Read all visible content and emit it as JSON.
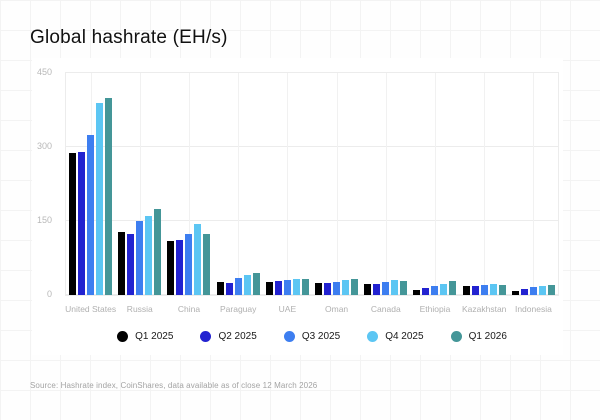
{
  "title": "Global hashrate (EH/s)",
  "source": "Source: Hashrate index, CoinShares, data available as of close 12 March 2026",
  "chart_data": {
    "type": "bar",
    "title": "Global hashrate (EH/s)",
    "categories": [
      "United States",
      "Russia",
      "China",
      "Paraguay",
      "UAE",
      "Oman",
      "Canada",
      "Ethiopia",
      "Kazakhstan",
      "Indonesia"
    ],
    "series": [
      {
        "name": "Q1 2025",
        "color": "#000000",
        "values": [
          287,
          127,
          109,
          27,
          27,
          24,
          22,
          10,
          18,
          9
        ]
      },
      {
        "name": "Q2 2025",
        "color": "#2222d0",
        "values": [
          289,
          124,
          111,
          25,
          28,
          24,
          22,
          14,
          18,
          12
        ]
      },
      {
        "name": "Q3 2025",
        "color": "#3d7ef0",
        "values": [
          324,
          150,
          123,
          34,
          30,
          27,
          27,
          19,
          20,
          17
        ]
      },
      {
        "name": "Q4 2025",
        "color": "#5cc6f3",
        "values": [
          389,
          161,
          144,
          40,
          33,
          30,
          30,
          22,
          22,
          19
        ]
      },
      {
        "name": "Q1 2026",
        "color": "#449698",
        "values": [
          400,
          175,
          124,
          44,
          32,
          32,
          29,
          29,
          20,
          21
        ]
      }
    ],
    "xlabel": "",
    "ylabel": "",
    "yticks": [
      0,
      150,
      300,
      450
    ],
    "ylim": [
      0,
      450
    ],
    "grid": true,
    "legend_position": "bottom"
  }
}
